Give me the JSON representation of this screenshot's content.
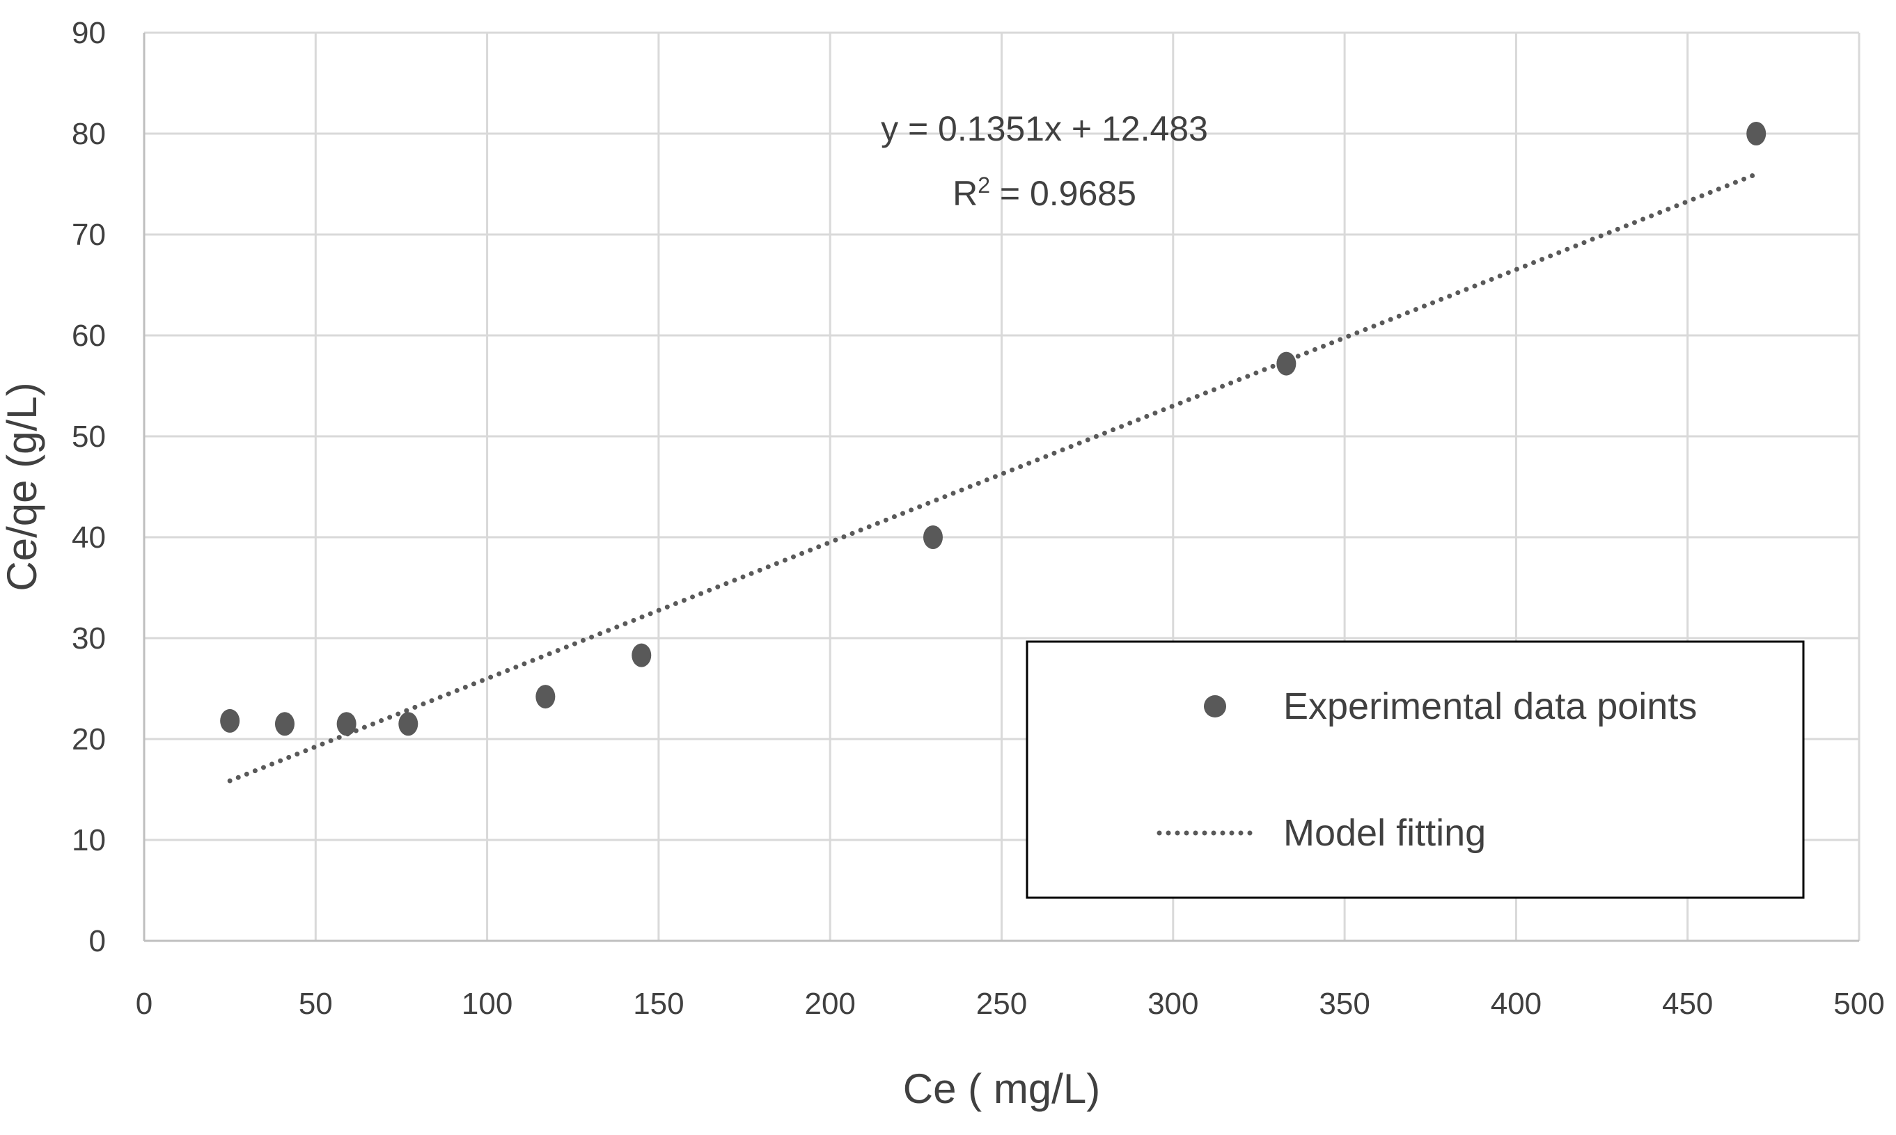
{
  "chart_data": {
    "type": "scatter",
    "title": "",
    "xlabel": "Ce ( mg/L)",
    "ylabel": "Ce/qe (g/L)",
    "xlim": [
      0,
      500
    ],
    "ylim": [
      0,
      90
    ],
    "x_ticks": [
      0,
      50,
      100,
      150,
      200,
      250,
      300,
      350,
      400,
      450,
      500
    ],
    "y_ticks": [
      0,
      10,
      20,
      30,
      40,
      50,
      60,
      70,
      80,
      90
    ],
    "grid": true,
    "series": [
      {
        "name": "Experimental data points",
        "kind": "scatter",
        "color": "#595959",
        "x": [
          25,
          41,
          59,
          77,
          117,
          145,
          230,
          333,
          470
        ],
        "y": [
          21.8,
          21.5,
          21.5,
          21.5,
          24.2,
          28.3,
          40.0,
          57.2,
          80.0
        ]
      },
      {
        "name": "Model fitting",
        "kind": "line",
        "style": "dotted",
        "color": "#595959",
        "x": [
          25,
          470
        ],
        "y": [
          15.86,
          75.98
        ]
      }
    ],
    "annotations": {
      "equation": "y = 0.1351x  + 12.483",
      "r_squared_prefix": "R",
      "r_squared_superscript": "2",
      "r_squared_value": " = 0.9685"
    },
    "legend": {
      "position": "lower-right",
      "items": [
        "Experimental data points",
        "Model fitting"
      ]
    }
  }
}
